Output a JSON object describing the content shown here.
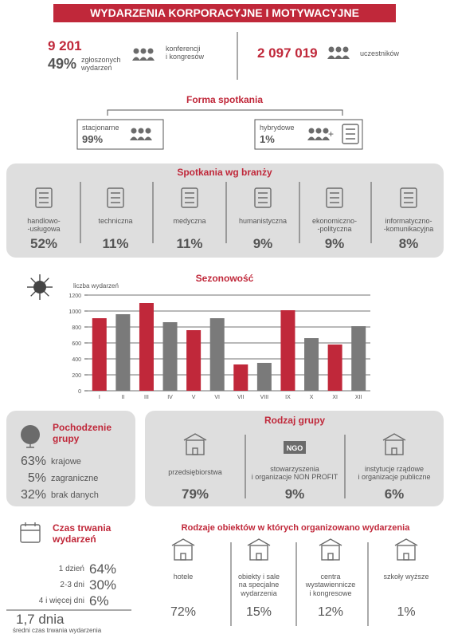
{
  "header": {
    "title": "WYDARZENIA KORPORACYJNE I MOTYWACYJNE"
  },
  "summary": {
    "count": "9 201",
    "share": "49%",
    "share_label": "zgłoszonych\nwydarzeń",
    "type_label": "konferencji\ni kongresów",
    "participants": "2 097 019",
    "participants_label": "uczestników"
  },
  "forma": {
    "title": "Forma spotkania",
    "items": [
      {
        "label": "stacjonarne",
        "value": "99%"
      },
      {
        "label": "hybrydowe",
        "value": "1%"
      }
    ],
    "plus": "+"
  },
  "branze": {
    "title": "Spotkania wg branży",
    "items": [
      {
        "label": "handlowo-\n-usługowa",
        "value": "52%"
      },
      {
        "label": "techniczna",
        "value": "11%"
      },
      {
        "label": "medyczna",
        "value": "11%"
      },
      {
        "label": "humanistyczna",
        "value": "9%"
      },
      {
        "label": "ekonomiczno-\n-polityczna",
        "value": "9%"
      },
      {
        "label": "informatyczno-\n-komunikacyjna",
        "value": "8%"
      }
    ]
  },
  "chart_data": {
    "type": "bar",
    "title": "Sezonowość",
    "y_label": "liczba wydarzeń",
    "categories": [
      "I",
      "II",
      "III",
      "IV",
      "V",
      "VI",
      "VII",
      "VIII",
      "IX",
      "X",
      "XI",
      "XII"
    ],
    "values": [
      910,
      960,
      1100,
      860,
      760,
      910,
      330,
      350,
      1010,
      660,
      580,
      810
    ],
    "colors": [
      "#c0283a",
      "#7a7a7a",
      "#c0283a",
      "#7a7a7a",
      "#c0283a",
      "#7a7a7a",
      "#c0283a",
      "#7a7a7a",
      "#c0283a",
      "#7a7a7a",
      "#c0283a",
      "#7a7a7a"
    ],
    "ylim": [
      0,
      1200
    ],
    "yticks": [
      0,
      200,
      400,
      600,
      800,
      1000,
      1200
    ],
    "grid": true
  },
  "pochodzenie": {
    "title": "Pochodzenie\ngrupy",
    "items": [
      {
        "value": "63%",
        "label": "krajowe"
      },
      {
        "value": "5%",
        "label": "zagraniczne"
      },
      {
        "value": "32%",
        "label": "brak danych"
      }
    ]
  },
  "rodzaj_grupy": {
    "title": "Rodzaj grupy",
    "icon_label": "NGO",
    "items": [
      {
        "label": "przedsiębiorstwa",
        "value": "79%"
      },
      {
        "label": "stowarzyszenia\ni organizacje NON PROFIT",
        "value": "9%"
      },
      {
        "label": "instytucje rządowe\ni organizacje publiczne",
        "value": "6%"
      }
    ]
  },
  "czas": {
    "title": "Czas trwania\nwydarzeń",
    "items": [
      {
        "label": "1 dzień",
        "value": "64%"
      },
      {
        "label": "2-3 dni",
        "value": "30%"
      },
      {
        "label": "4 i więcej dni",
        "value": "6%"
      }
    ],
    "average": "1,7 dnia",
    "average_label": "średni czas trwania wydarzenia"
  },
  "obiekty": {
    "title": "Rodzaje obiektów w których organizowano wydarzenia",
    "items": [
      {
        "label": "hotele",
        "value": "72%"
      },
      {
        "label": "obiekty i sale\nna specjalne\nwydarzenia",
        "value": "15%"
      },
      {
        "label": "centra\nwystawiennicze\ni kongresowe",
        "value": "12%"
      },
      {
        "label": "szkoły wyższe",
        "value": "1%"
      }
    ]
  }
}
